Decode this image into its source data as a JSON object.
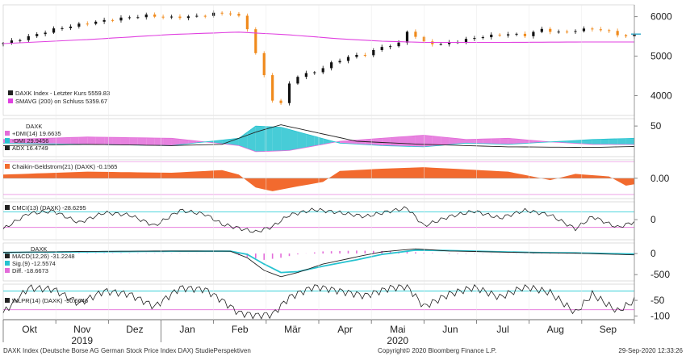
{
  "chart_data": {
    "type": "line",
    "footer": {
      "left": "DAXK Index (Deutsche Borse AG German Stock Price Index DAX)  StudiePerspektiven",
      "center": "Copyright© 2020 Bloomberg Finance L.P.",
      "right": "29-Sep-2020  12:33:26"
    },
    "x_axis": {
      "months": [
        "Okt",
        "Nov",
        "Dez",
        "Jan",
        "Feb",
        "Mär",
        "Apr",
        "Mai",
        "Jun",
        "Jul",
        "Aug",
        "Sep"
      ],
      "years": [
        "2019",
        "2020"
      ]
    },
    "panels": [
      {
        "id": "price",
        "yticks": [
          4000,
          5000,
          6000
        ],
        "ylim": [
          3500,
          6300
        ],
        "legend": [
          {
            "label": "DAXK Index - Letzter Kurs",
            "value": "5559.83",
            "color": "#222222"
          },
          {
            "label": "SMAVG (200)  on Schluss",
            "value": "5359.67",
            "color": "#e040e0"
          }
        ],
        "last_value_tag": "5559.83",
        "colors": {
          "up": "#111111",
          "down": "#f08a1c",
          "sma": "#e040e0"
        },
        "series": {
          "close_keypoints": [
            [
              0,
              5330
            ],
            [
              2,
              5430
            ],
            [
              6,
              5680
            ],
            [
              10,
              5840
            ],
            [
              14,
              5960
            ],
            [
              17,
              6030
            ],
            [
              20,
              5980
            ],
            [
              23,
              6010
            ],
            [
              25,
              6080
            ],
            [
              27,
              6090
            ],
            [
              28,
              6000
            ],
            [
              29,
              5700
            ],
            [
              30,
              5080
            ],
            [
              31,
              4500
            ],
            [
              32,
              3900
            ],
            [
              33,
              3800
            ],
            [
              34,
              4300
            ],
            [
              35,
              4500
            ],
            [
              37,
              4600
            ],
            [
              39,
              4820
            ],
            [
              41,
              4980
            ],
            [
              43,
              5050
            ],
            [
              45,
              5230
            ],
            [
              47,
              5320
            ],
            [
              48,
              5630
            ],
            [
              49,
              5500
            ],
            [
              50,
              5350
            ],
            [
              52,
              5300
            ],
            [
              54,
              5380
            ],
            [
              57,
              5500
            ],
            [
              60,
              5560
            ],
            [
              62,
              5530
            ],
            [
              64,
              5680
            ],
            [
              66,
              5600
            ],
            [
              68,
              5650
            ],
            [
              70,
              5700
            ],
            [
              72,
              5620
            ],
            [
              74,
              5490
            ],
            [
              75,
              5560
            ]
          ],
          "sma_keypoints": [
            [
              0,
              5320
            ],
            [
              10,
              5420
            ],
            [
              20,
              5550
            ],
            [
              28,
              5610
            ],
            [
              34,
              5540
            ],
            [
              40,
              5440
            ],
            [
              45,
              5380
            ],
            [
              50,
              5350
            ],
            [
              60,
              5350
            ],
            [
              70,
              5360
            ],
            [
              75,
              5360
            ]
          ]
        }
      },
      {
        "id": "dmi",
        "title": "DAXK",
        "yticks": [
          50
        ],
        "legend": [
          {
            "label": "+DMI(14)",
            "value": "19.6635",
            "color": "#e36cd9"
          },
          {
            "label": "-DMI",
            "value": "29.9456",
            "color": "#27c3d0"
          },
          {
            "label": "ADX",
            "value": "16.4749",
            "color": "#222222"
          }
        ],
        "colors": {
          "plus": "#e36cd9",
          "minus": "#27c3d0",
          "adx": "#222222"
        },
        "series": {
          "plus_dmi": [
            [
              0,
              28
            ],
            [
              10,
              32
            ],
            [
              20,
              30
            ],
            [
              28,
              18
            ],
            [
              30,
              8
            ],
            [
              34,
              10
            ],
            [
              40,
              25
            ],
            [
              45,
              30
            ],
            [
              50,
              35
            ],
            [
              55,
              28
            ],
            [
              60,
              30
            ],
            [
              65,
              24
            ],
            [
              70,
              20
            ],
            [
              75,
              19.7
            ]
          ],
          "minus_dmi": [
            [
              0,
              22
            ],
            [
              10,
              20
            ],
            [
              20,
              18
            ],
            [
              28,
              30
            ],
            [
              30,
              50
            ],
            [
              33,
              48
            ],
            [
              40,
              22
            ],
            [
              45,
              18
            ],
            [
              50,
              16
            ],
            [
              55,
              22
            ],
            [
              60,
              20
            ],
            [
              65,
              24
            ],
            [
              70,
              28
            ],
            [
              75,
              29.9
            ]
          ],
          "adx": [
            [
              0,
              18
            ],
            [
              10,
              20
            ],
            [
              20,
              18
            ],
            [
              26,
              20
            ],
            [
              30,
              40
            ],
            [
              33,
              52
            ],
            [
              37,
              40
            ],
            [
              42,
              25
            ],
            [
              50,
              20
            ],
            [
              60,
              16
            ],
            [
              70,
              15
            ],
            [
              75,
              16.5
            ]
          ]
        }
      },
      {
        "id": "chaikin",
        "title": "Chaikin-Geldstrom(21) (DAXK)",
        "value": "-0.1565",
        "yticks": [
          "0.00"
        ],
        "colors": {
          "fill": "#f26a2e"
        },
        "series": {
          "values": [
            [
              0,
              0.1
            ],
            [
              10,
              0.18
            ],
            [
              20,
              0.15
            ],
            [
              26,
              0.22
            ],
            [
              28,
              0.1
            ],
            [
              30,
              -0.25
            ],
            [
              32,
              -0.35
            ],
            [
              35,
              -0.22
            ],
            [
              38,
              -0.1
            ],
            [
              40,
              0.2
            ],
            [
              45,
              0.26
            ],
            [
              50,
              0.3
            ],
            [
              55,
              0.24
            ],
            [
              60,
              0.18
            ],
            [
              65,
              -0.05
            ],
            [
              68,
              0.12
            ],
            [
              72,
              0.05
            ],
            [
              74,
              -0.2
            ],
            [
              75,
              -0.16
            ]
          ]
        }
      },
      {
        "id": "cmci",
        "title": "CMCI(13) (DAXK)",
        "value": "-28.6295",
        "yticks": [
          0
        ],
        "levels": {
          "upper": 100,
          "lower": -100
        },
        "colors": {
          "line": "#222222",
          "upper": "#3ad1d8",
          "lower": "#e36cd9"
        },
        "series": {
          "values": [
            [
              0,
              -120
            ],
            [
              3,
              80
            ],
            [
              6,
              110
            ],
            [
              9,
              -40
            ],
            [
              12,
              90
            ],
            [
              15,
              60
            ],
            [
              18,
              -80
            ],
            [
              21,
              120
            ],
            [
              24,
              70
            ],
            [
              26,
              -60
            ],
            [
              28,
              -110
            ],
            [
              30,
              -160
            ],
            [
              32,
              -90
            ],
            [
              34,
              60
            ],
            [
              37,
              130
            ],
            [
              40,
              90
            ],
            [
              43,
              40
            ],
            [
              46,
              110
            ],
            [
              48,
              150
            ],
            [
              50,
              -80
            ],
            [
              53,
              40
            ],
            [
              56,
              110
            ],
            [
              59,
              20
            ],
            [
              62,
              120
            ],
            [
              65,
              60
            ],
            [
              68,
              -120
            ],
            [
              70,
              40
            ],
            [
              73,
              -100
            ],
            [
              75,
              -28.6
            ]
          ]
        }
      },
      {
        "id": "macd",
        "title": "DAXK",
        "yticks": [
          0,
          -500
        ],
        "legend": [
          {
            "label": "MACD(12,26)",
            "value": "-31.2248",
            "color": "#222222"
          },
          {
            "label": "Sig.(9)",
            "value": "-12.5574",
            "color": "#27c3d0"
          },
          {
            "label": "Diff.",
            "value": "-18.6673",
            "color": "#e36cd9"
          }
        ],
        "colors": {
          "macd": "#222222",
          "signal": "#27c3d0",
          "diff": "#e36cd9"
        },
        "series": {
          "macd": [
            [
              0,
              30
            ],
            [
              10,
              50
            ],
            [
              20,
              60
            ],
            [
              27,
              55
            ],
            [
              29,
              -100
            ],
            [
              31,
              -400
            ],
            [
              33,
              -550
            ],
            [
              35,
              -450
            ],
            [
              38,
              -250
            ],
            [
              42,
              -80
            ],
            [
              45,
              40
            ],
            [
              49,
              110
            ],
            [
              53,
              60
            ],
            [
              58,
              40
            ],
            [
              63,
              20
            ],
            [
              68,
              10
            ],
            [
              72,
              -15
            ],
            [
              75,
              -31.2
            ]
          ],
          "signal": [
            [
              0,
              25
            ],
            [
              10,
              40
            ],
            [
              20,
              55
            ],
            [
              27,
              55
            ],
            [
              29,
              -20
            ],
            [
              31,
              -250
            ],
            [
              33,
              -450
            ],
            [
              35,
              -430
            ],
            [
              38,
              -300
            ],
            [
              42,
              -150
            ],
            [
              45,
              -20
            ],
            [
              49,
              80
            ],
            [
              53,
              70
            ],
            [
              58,
              45
            ],
            [
              63,
              25
            ],
            [
              68,
              15
            ],
            [
              72,
              0
            ],
            [
              75,
              -12.6
            ]
          ],
          "diff": [
            [
              0,
              5
            ],
            [
              10,
              10
            ],
            [
              20,
              5
            ],
            [
              27,
              0
            ],
            [
              29,
              -80
            ],
            [
              31,
              -150
            ],
            [
              33,
              -100
            ],
            [
              35,
              -20
            ],
            [
              38,
              50
            ],
            [
              42,
              70
            ],
            [
              45,
              60
            ],
            [
              49,
              30
            ],
            [
              53,
              -10
            ],
            [
              58,
              -5
            ],
            [
              63,
              -5
            ],
            [
              68,
              -5
            ],
            [
              72,
              -15
            ],
            [
              75,
              -18.7
            ]
          ]
        }
      },
      {
        "id": "wlpr",
        "title": "WLPR(14) (DAXK)",
        "value": "-50.6646",
        "yticks": [
          -50,
          -100
        ],
        "levels": {
          "upper": -20,
          "lower": -80
        },
        "colors": {
          "line": "#222222",
          "upper": "#3ad1d8",
          "lower": "#e36cd9"
        },
        "series": {
          "values": [
            [
              0,
              -90
            ],
            [
              3,
              -10
            ],
            [
              6,
              -15
            ],
            [
              9,
              -60
            ],
            [
              12,
              -20
            ],
            [
              15,
              -30
            ],
            [
              18,
              -70
            ],
            [
              21,
              -10
            ],
            [
              24,
              -15
            ],
            [
              26,
              -50
            ],
            [
              28,
              -90
            ],
            [
              30,
              -98
            ],
            [
              32,
              -95
            ],
            [
              34,
              -40
            ],
            [
              37,
              -5
            ],
            [
              40,
              -20
            ],
            [
              43,
              -35
            ],
            [
              46,
              -10
            ],
            [
              48,
              -5
            ],
            [
              50,
              -70
            ],
            [
              53,
              -30
            ],
            [
              56,
              -8
            ],
            [
              59,
              -40
            ],
            [
              62,
              -6
            ],
            [
              65,
              -25
            ],
            [
              68,
              -90
            ],
            [
              70,
              -30
            ],
            [
              73,
              -85
            ],
            [
              75,
              -50.7
            ]
          ]
        }
      }
    ]
  }
}
